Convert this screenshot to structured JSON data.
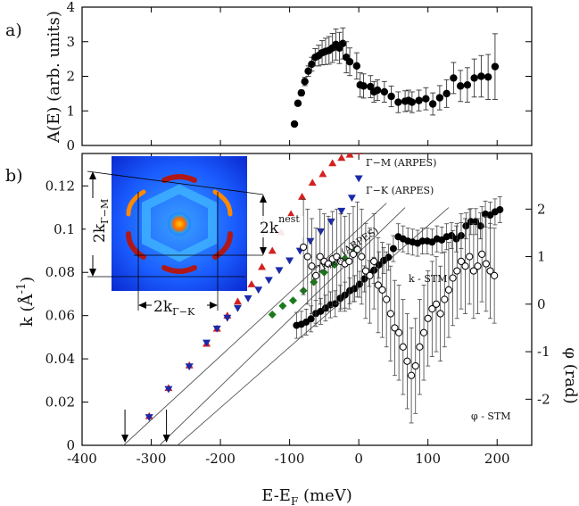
{
  "chart_data": [
    {
      "panel": "a)",
      "type": "scatter",
      "xlim": [
        -400,
        250
      ],
      "ylim": [
        0,
        4
      ],
      "xlabel": "",
      "ylabel": "A(E) (arb. units)",
      "yticks": [
        "0",
        "1",
        "2",
        "3",
        "4"
      ],
      "series": [
        {
          "marker": "filled-circle",
          "color": "#000000",
          "x": [
            -93,
            -88,
            -83,
            -78,
            -73,
            -68,
            -63,
            -58,
            -53,
            -48,
            -43,
            -38,
            -33,
            -28,
            -23,
            -18,
            -13,
            -3,
            2,
            7,
            17,
            22,
            27,
            37,
            47,
            57,
            67,
            72,
            77,
            87,
            97,
            107,
            117,
            127,
            137,
            147,
            157,
            167,
            177,
            187,
            197
          ],
          "y": [
            0.62,
            1.22,
            1.52,
            1.85,
            2.15,
            2.35,
            2.55,
            2.6,
            2.68,
            2.72,
            2.75,
            2.82,
            2.92,
            2.82,
            2.95,
            2.55,
            2.42,
            2.3,
            1.75,
            1.72,
            1.7,
            1.55,
            1.6,
            1.55,
            1.42,
            1.25,
            1.28,
            1.3,
            1.25,
            1.3,
            1.35,
            1.2,
            1.38,
            1.5,
            1.95,
            1.72,
            1.75,
            1.95,
            2.0,
            1.98,
            2.28
          ],
          "err": [
            0.02,
            0.05,
            0.08,
            0.12,
            0.15,
            0.2,
            0.25,
            0.3,
            0.35,
            0.38,
            0.4,
            0.42,
            0.45,
            0.45,
            0.45,
            0.45,
            0.4,
            0.38,
            0.35,
            0.35,
            0.32,
            0.3,
            0.3,
            0.3,
            0.3,
            0.3,
            0.3,
            0.3,
            0.3,
            0.3,
            0.32,
            0.32,
            0.35,
            0.4,
            0.45,
            0.45,
            0.5,
            0.55,
            0.6,
            0.65,
            0.95
          ]
        }
      ]
    },
    {
      "panel": "b)",
      "type": "scatter",
      "xlim": [
        -400,
        250
      ],
      "ylim": [
        0,
        0.135
      ],
      "xlabel": "E-E",
      "xlabel_sub": "F",
      "xlabel_unit": " (meV)",
      "ylabel": "k (Å",
      "ylabel_sup": "-1",
      "ylabel_end": ")",
      "y2label": "φ (rad)",
      "y2lim": [
        -2.97,
        3.17
      ],
      "xticks": [
        "-400",
        "-300",
        "-200",
        "-100",
        "0",
        "100",
        "200"
      ],
      "yticks": [
        "0",
        "0.02",
        "0.04",
        "0.06",
        "0.08",
        "0.1",
        "0.12"
      ],
      "y2ticks": [
        "-2",
        "-1",
        "0",
        "1",
        "2"
      ],
      "annotations": {
        "gm": "Γ−M (ARPES)",
        "gk": "Γ−K (ARPES)",
        "nest_main": "2k",
        "nest_sub": "nest",
        "nest_end": " (ARPES)",
        "kstm": "k - STM",
        "phistm": "φ - STM"
      },
      "reference_lines": [
        {
          "x0": -340,
          "y0": 0,
          "x1": 40,
          "y1": 0.112
        },
        {
          "x0": -288,
          "y0": 0,
          "x1": 67,
          "y1": 0.11
        },
        {
          "x0": -262,
          "y0": 0,
          "x1": 130,
          "y1": 0.11
        }
      ],
      "arrows_at_x": [
        -338,
        -278
      ],
      "series": [
        {
          "name": "Γ−M (ARPES)",
          "marker": "triangle-up",
          "color": "#d42020",
          "x": [
            -303,
            -275,
            -245,
            -220,
            -205,
            -190,
            -175,
            -155,
            -140,
            -125,
            -112,
            -98,
            -82,
            -67,
            -52,
            -38,
            -25,
            -13,
            0
          ],
          "y": [
            0.0135,
            0.0265,
            0.037,
            0.047,
            0.054,
            0.06,
            0.0665,
            0.0745,
            0.0825,
            0.09,
            0.0985,
            0.107,
            0.115,
            0.1215,
            0.1255,
            0.1305,
            0.133,
            0.1345,
            0.136
          ]
        },
        {
          "name": "Γ−K (ARPES)",
          "marker": "triangle-down",
          "color": "#1a2aa8",
          "x": [
            -303,
            -275,
            -245,
            -220,
            -205,
            -190,
            -175,
            -160,
            -145,
            -130,
            -115,
            -100,
            -85,
            -70,
            -55,
            -40,
            -25,
            -10,
            0
          ],
          "y": [
            0.013,
            0.026,
            0.0365,
            0.0475,
            0.054,
            0.059,
            0.0635,
            0.068,
            0.072,
            0.0765,
            0.081,
            0.0855,
            0.09,
            0.0945,
            0.099,
            0.1035,
            0.1085,
            0.1145,
            0.1235
          ]
        },
        {
          "name": "2k_nest (ARPES)",
          "marker": "diamond",
          "color": "#1a7a1a",
          "x": [
            -125,
            -110,
            -95,
            -80,
            -65,
            -50,
            -35,
            -20,
            -5
          ],
          "y": [
            0.0605,
            0.0645,
            0.067,
            0.0715,
            0.0755,
            0.08,
            0.0835,
            0.0865,
            0.0905
          ]
        },
        {
          "name": "k - STM",
          "marker": "filled-circle",
          "color": "#000000",
          "x": [
            -90,
            -83,
            -76,
            -69,
            -62,
            -55,
            -48,
            -41,
            -34,
            -27,
            -20,
            -13,
            -6,
            1,
            8,
            15,
            22,
            29,
            36,
            43,
            50,
            57,
            64,
            71,
            78,
            85,
            92,
            99,
            106,
            113,
            120,
            127,
            134,
            141,
            148,
            155,
            162,
            169,
            176,
            183,
            190,
            197,
            204
          ],
          "y": [
            0.0555,
            0.056,
            0.057,
            0.0585,
            0.061,
            0.062,
            0.0635,
            0.065,
            0.0655,
            0.068,
            0.0695,
            0.0715,
            0.0725,
            0.0745,
            0.077,
            0.0795,
            0.081,
            0.0835,
            0.0855,
            0.087,
            0.091,
            0.0965,
            0.0955,
            0.0945,
            0.094,
            0.0935,
            0.0945,
            0.0945,
            0.094,
            0.0955,
            0.095,
            0.0965,
            0.097,
            0.0955,
            0.097,
            0.1015,
            0.1035,
            0.1035,
            0.1015,
            0.107,
            0.1065,
            0.108,
            0.109
          ],
          "err": [
            0.006,
            0.006,
            0.006,
            0.006,
            0.006,
            0.006,
            0.006,
            0.006,
            0.006,
            0.006,
            0.006,
            0.006,
            0.006,
            0.006,
            0.006,
            0.006,
            0.006,
            0.006,
            0.006,
            0.006,
            0.006,
            0.006,
            0.006,
            0.006,
            0.006,
            0.006,
            0.006,
            0.006,
            0.006,
            0.006,
            0.006,
            0.006,
            0.006,
            0.006,
            0.006,
            0.006,
            0.006,
            0.006,
            0.006,
            0.006,
            0.006,
            0.006,
            0.006
          ]
        },
        {
          "name": "φ - STM",
          "marker": "open-circle",
          "color": "#000000",
          "axis": "right",
          "x": [
            -80,
            -74,
            -68,
            -62,
            -56,
            -50,
            -44,
            -38,
            -32,
            -26,
            -20,
            -14,
            -8,
            -2,
            4,
            10,
            16,
            22,
            28,
            34,
            40,
            46,
            52,
            58,
            64,
            70,
            76,
            82,
            88,
            94,
            100,
            106,
            112,
            118,
            124,
            130,
            136,
            142,
            148,
            154,
            160,
            166,
            172,
            178,
            184,
            190,
            196
          ],
          "y": [
            1.2,
            1.0,
            0.8,
            0.6,
            1.0,
            0.9,
            0.85,
            0.95,
            1.0,
            0.9,
            0.85,
            0.9,
            1.05,
            1.15,
            1.0,
            0.7,
            0.6,
            0.9,
            0.4,
            0.3,
            0.1,
            -0.2,
            -0.5,
            -0.6,
            -0.9,
            -1.2,
            -1.5,
            -1.3,
            -0.9,
            -0.6,
            -0.3,
            -0.1,
            0.0,
            -0.2,
            0.1,
            0.3,
            0.55,
            0.7,
            0.9,
            0.8,
            1.0,
            0.7,
            0.8,
            1.05,
            0.85,
            0.7,
            0.6
          ],
          "err": [
            1.0,
            1.0,
            1.0,
            1.0,
            1.0,
            1.0,
            1.0,
            1.0,
            1.0,
            1.0,
            1.0,
            1.0,
            1.0,
            1.0,
            1.0,
            1.0,
            1.0,
            1.0,
            1.0,
            1.0,
            1.0,
            1.0,
            1.0,
            1.0,
            1.0,
            1.0,
            1.0,
            1.0,
            1.0,
            1.0,
            1.0,
            1.0,
            1.0,
            1.0,
            1.0,
            1.0,
            1.0,
            1.0,
            1.0,
            1.0,
            1.0,
            1.0,
            1.0,
            1.0,
            1.0,
            1.0,
            1.0
          ]
        }
      ],
      "inset": {
        "type": "heatmap",
        "labels": {
          "gm_main": "2k",
          "gm_sub": "Γ−M",
          "gk_main": "2k",
          "gk_sub": "Γ−K",
          "nest_main": "2k",
          "nest_sub": "nest"
        }
      }
    }
  ]
}
